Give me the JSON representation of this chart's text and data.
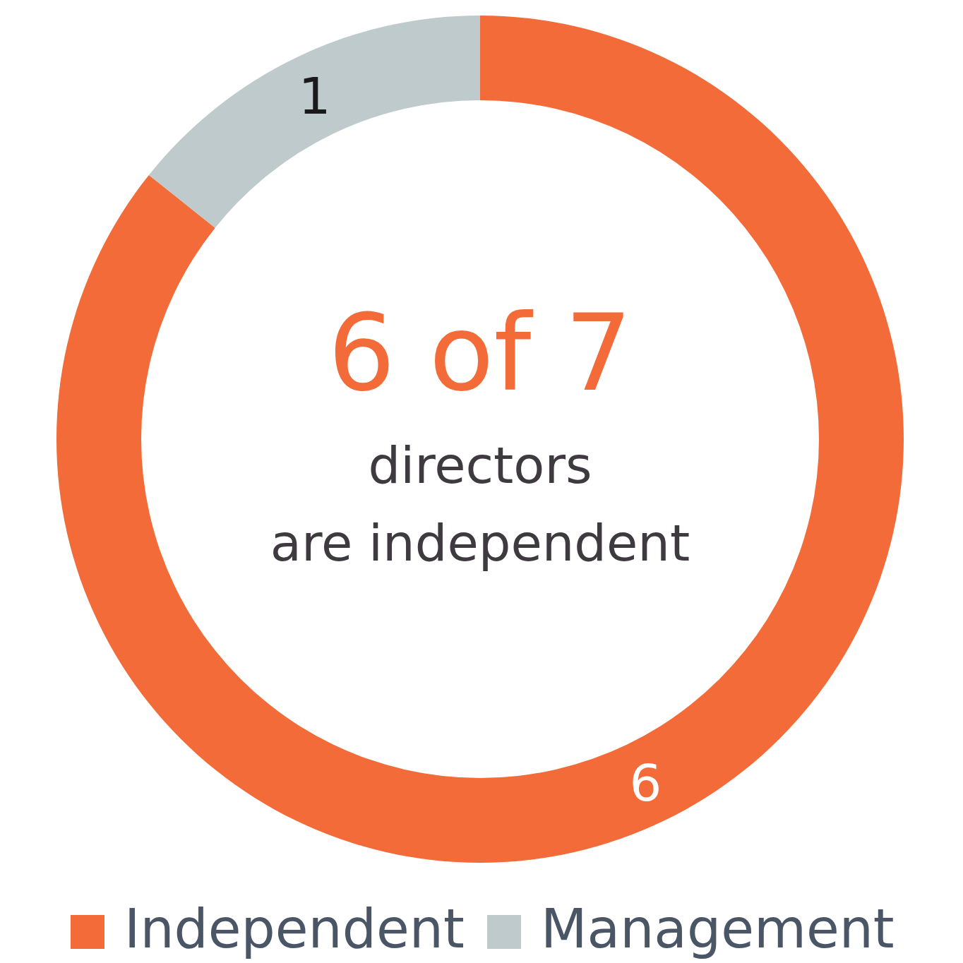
{
  "chart_data": {
    "type": "donut",
    "categories": [
      "Independent",
      "Management"
    ],
    "values": [
      6,
      1
    ],
    "colors": [
      "#f26b38",
      "#bfcacc"
    ],
    "data_labels": true,
    "legend": "bottom",
    "annotations": [
      "6 of 7",
      "directors",
      "are independent"
    ]
  }
}
